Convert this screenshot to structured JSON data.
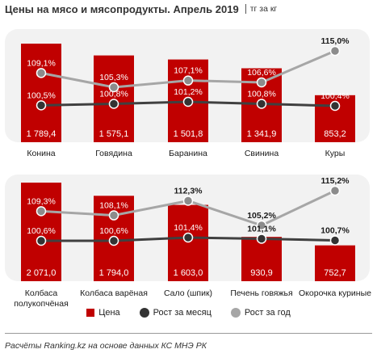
{
  "header": {
    "title": "Цены на мясо и мясопродукты.  Апрель 2019",
    "unit": "тг за кг"
  },
  "legend": {
    "price": "Цена",
    "month_growth": "Рост за месяц",
    "year_growth": "Рост за год"
  },
  "source": "Расчёты Ranking.kz на основе данных  КС МНЭ РК",
  "colors": {
    "bar": "#c00000",
    "month_line": "#404040",
    "month_dot": "#333333",
    "year_line": "#a6a6a6",
    "year_dot": "#8c8c8c",
    "panel_bg": "#f2f2f2"
  },
  "chart_data": [
    {
      "type": "bar",
      "categories": [
        "Конина",
        "Говядина",
        "Баранина",
        "Свинина",
        "Куры"
      ],
      "series": [
        {
          "name": "Цена",
          "type": "bar",
          "values": [
            1789.4,
            1575.1,
            1501.8,
            1341.9,
            853.2
          ],
          "labels": [
            "1 789,4",
            "1 575,1",
            "1 501,8",
            "1 341,9",
            "853,2"
          ]
        },
        {
          "name": "Рост за месяц",
          "type": "line",
          "values": [
            100.5,
            100.8,
            101.2,
            100.8,
            100.4
          ],
          "labels": [
            "100,5%",
            "100,8%",
            "101,2%",
            "100,8%",
            "100,4%"
          ]
        },
        {
          "name": "Рост за год",
          "type": "line",
          "values": [
            109.1,
            105.3,
            107.1,
            106.6,
            115.0
          ],
          "labels": [
            "109,1%",
            "105,3%",
            "107,1%",
            "106,6%",
            "115,0%"
          ]
        }
      ]
    },
    {
      "type": "bar",
      "categories": [
        [
          "Колбаса",
          "полукопчёная"
        ],
        [
          "Колбаса варёная"
        ],
        [
          "Сало (шпик)"
        ],
        [
          "Печень говяжья"
        ],
        [
          "Окорочка куриные"
        ]
      ],
      "series": [
        {
          "name": "Цена",
          "type": "bar",
          "values": [
            2071.0,
            1794.0,
            1603.0,
            930.9,
            752.7
          ],
          "labels": [
            "2 071,0",
            "1 794,0",
            "1 603,0",
            "930,9",
            "752,7"
          ]
        },
        {
          "name": "Рост за месяц",
          "type": "line",
          "values": [
            100.6,
            100.6,
            101.4,
            101.1,
            100.7
          ],
          "labels": [
            "100,6%",
            "100,6%",
            "101,4%",
            "101,1%",
            "100,7%"
          ]
        },
        {
          "name": "Рост за год",
          "type": "line",
          "values": [
            109.3,
            108.1,
            112.3,
            105.2,
            115.2
          ],
          "labels": [
            "109,3%",
            "108,1%",
            "112,3%",
            "105,2%",
            "115,2%"
          ]
        }
      ]
    }
  ]
}
